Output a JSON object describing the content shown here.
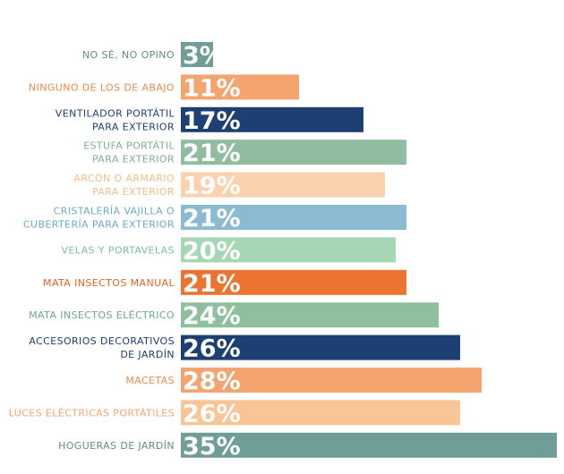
{
  "chart_data": {
    "type": "bar",
    "orientation": "horizontal",
    "title": "",
    "xlabel": "",
    "ylabel": "",
    "xlim": [
      0,
      35
    ],
    "grid": false,
    "categories": [
      [
        "NO SÉ, NO OPINO"
      ],
      [
        "NINGUNO DE LOS DE ABAJO"
      ],
      [
        "VENTILADOR PORTÁTIL",
        "PARA EXTERIOR"
      ],
      [
        "ESTUFA PORTÁTIL",
        "PARA EXTERIOR"
      ],
      [
        "ARCÓN O ARMARIO",
        "PARA EXTERIOR"
      ],
      [
        "CRISTALERÍA VAJILLA O",
        "CUBERTERÍA PARA EXTERIOR"
      ],
      [
        "VELAS Y PORTAVELAS"
      ],
      [
        "MATA INSECTOS MANUAL"
      ],
      [
        "MATA INSECTOS ELÉCTRICO"
      ],
      [
        "ACCESORIOS DECORATIVOS",
        "DE JARDÍN"
      ],
      [
        "MACETAS"
      ],
      [
        "LUCES ELÉCTRICAS PORTÁTILES"
      ],
      [
        "HOGUERAS DE JARDÍN"
      ]
    ],
    "values": [
      3,
      11,
      17,
      21,
      19,
      21,
      20,
      21,
      24,
      26,
      28,
      26,
      35
    ],
    "value_labels": [
      "3%",
      "11%",
      "17%",
      "21%",
      "19%",
      "21%",
      "20%",
      "21%",
      "24%",
      "26%",
      "28%",
      "26%",
      "35%"
    ],
    "bar_colors": [
      "#6f9e98",
      "#f4a46f",
      "#1d3f72",
      "#90bca0",
      "#fbd2ad",
      "#8dbad3",
      "#a6d6b3",
      "#ea7430",
      "#8ec09e",
      "#1d3f72",
      "#f4a46f",
      "#f9c597",
      "#6f9e98"
    ],
    "label_colors": [
      "#5e8d88",
      "#e88a4d",
      "#1d3f72",
      "#7fae93",
      "#f6bb8a",
      "#6da8c6",
      "#7fbf98",
      "#e2651e",
      "#6fa58f",
      "#1d3f72",
      "#ee8a4f",
      "#f4a46f",
      "#5e8d88"
    ],
    "value_label_colors": [
      "#5f8f88",
      "#ffffff",
      "#ffffff",
      "#ffffff",
      "#ffffff",
      "#ffffff",
      "#ffffff",
      "#ffffff",
      "#ffffff",
      "#ffffff",
      "#ffffff",
      "#ffffff",
      "#ffffff"
    ]
  }
}
